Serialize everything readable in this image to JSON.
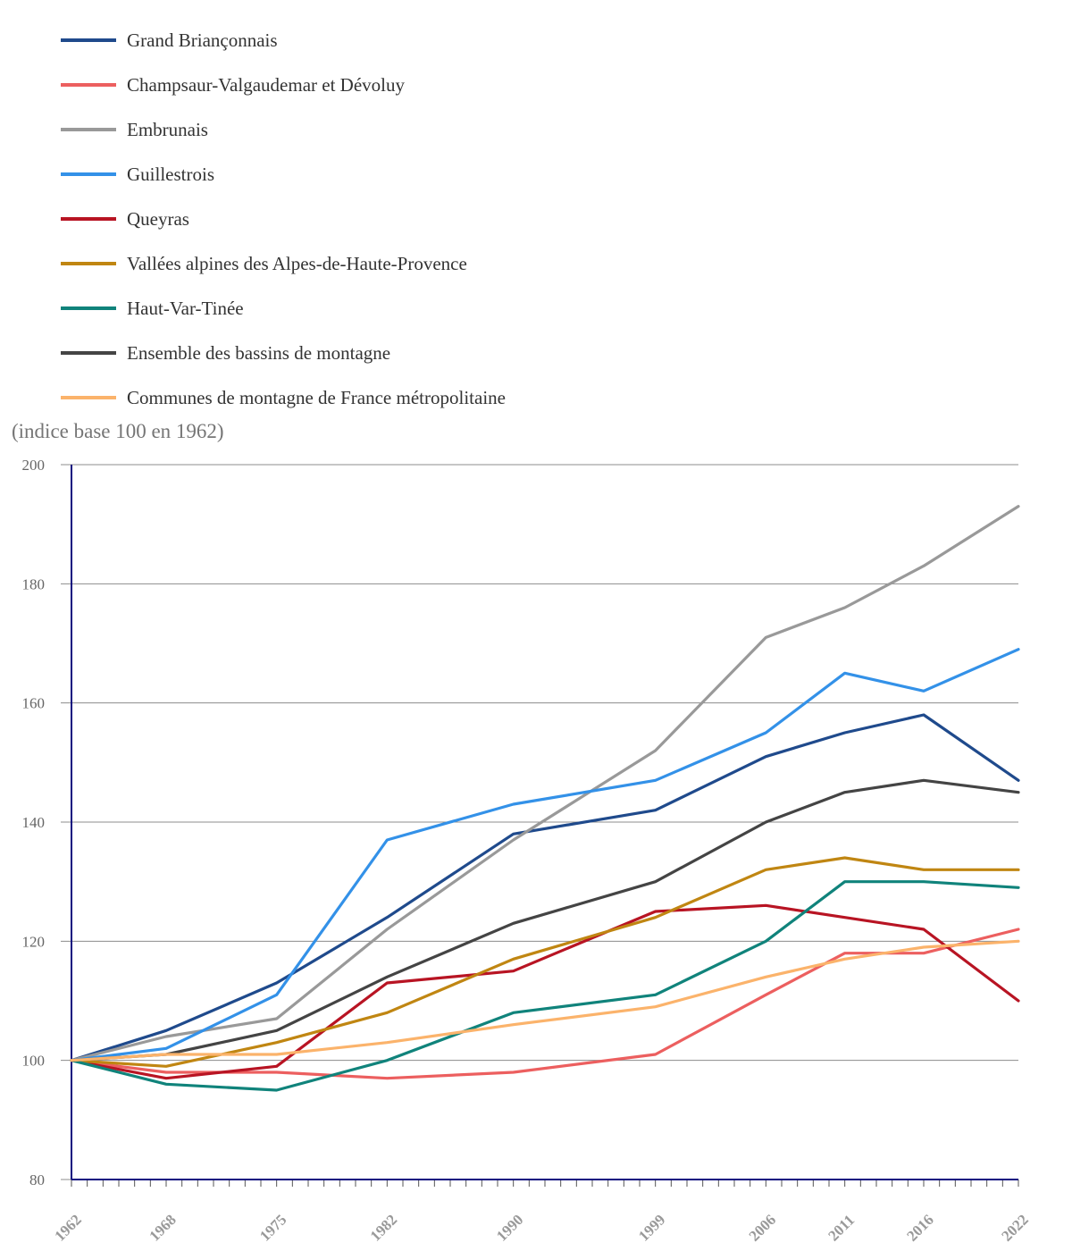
{
  "chart_data": {
    "type": "line",
    "title": "",
    "ylabel": "(indice base 100 en 1962)",
    "xlabel": "",
    "ylim": [
      80,
      200
    ],
    "yticks": [
      80,
      100,
      120,
      140,
      160,
      180,
      200
    ],
    "grid": true,
    "legend_position": "top-left",
    "x": [
      1962,
      1968,
      1975,
      1982,
      1990,
      1999,
      2006,
      2011,
      2016,
      2022
    ],
    "x_tick_labels": [
      "1962",
      "1968",
      "1975",
      "1982",
      "1990",
      "1999",
      "2006",
      "2011",
      "2016",
      "2022"
    ],
    "series": [
      {
        "name": "Grand Briançonnais",
        "color": "#1f4a8c",
        "values": [
          100,
          105,
          113,
          124,
          138,
          142,
          151,
          155,
          158,
          147
        ]
      },
      {
        "name": "Champsaur-Valgaudemar et Dévoluy",
        "color": "#ec5f5f",
        "values": [
          100,
          98,
          98,
          97,
          98,
          101,
          111,
          118,
          118,
          122
        ]
      },
      {
        "name": "Embrunais",
        "color": "#999999",
        "values": [
          100,
          104,
          107,
          122,
          137,
          152,
          171,
          176,
          183,
          193
        ]
      },
      {
        "name": "Guillestrois",
        "color": "#3391e8",
        "values": [
          100,
          102,
          111,
          137,
          143,
          147,
          155,
          165,
          162,
          169
        ]
      },
      {
        "name": "Queyras",
        "color": "#b81423",
        "values": [
          100,
          97,
          99,
          113,
          115,
          125,
          126,
          124,
          122,
          110
        ]
      },
      {
        "name": "Vallées alpines des Alpes-de-Haute-Provence",
        "color": "#c08612",
        "values": [
          100,
          99,
          103,
          108,
          117,
          124,
          132,
          134,
          132,
          132
        ]
      },
      {
        "name": "Haut-Var-Tinée",
        "color": "#10837b",
        "values": [
          100,
          96,
          95,
          100,
          108,
          111,
          120,
          130,
          130,
          129
        ]
      },
      {
        "name": "Ensemble des bassins de montagne",
        "color": "#444444",
        "values": [
          100,
          101,
          105,
          114,
          123,
          130,
          140,
          145,
          147,
          145
        ]
      },
      {
        "name": "Communes de montagne de France métropolitaine",
        "color": "#fbb36b",
        "values": [
          100,
          101,
          101,
          103,
          106,
          109,
          114,
          117,
          119,
          120
        ]
      }
    ]
  }
}
